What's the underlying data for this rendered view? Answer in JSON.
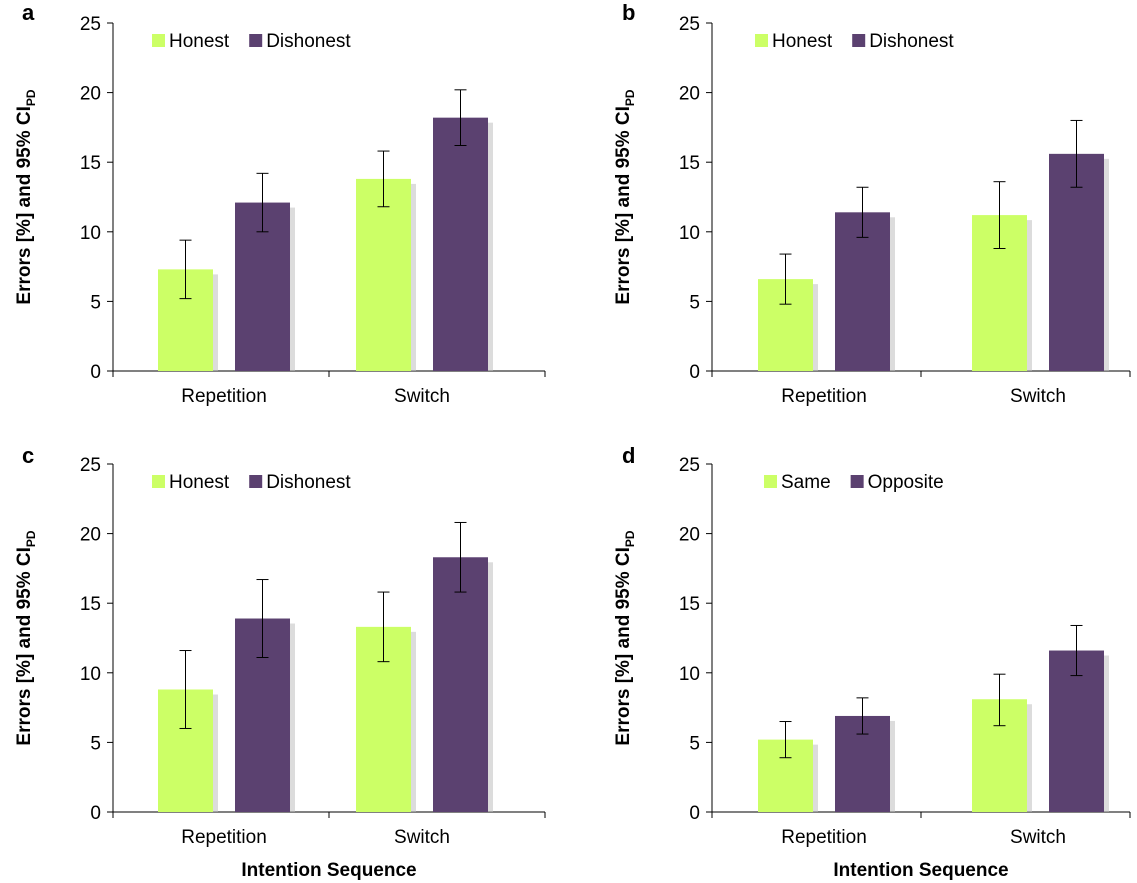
{
  "chart_data": [
    {
      "type": "bar",
      "panel_label": "a",
      "categories": [
        "Repetition",
        "Switch"
      ],
      "series": [
        {
          "name": "Honest",
          "values": [
            7.3,
            13.8
          ],
          "ci_low": [
            5.2,
            11.8
          ],
          "ci_high": [
            9.4,
            15.8
          ]
        },
        {
          "name": "Dishonest",
          "values": [
            12.1,
            18.2
          ],
          "ci_low": [
            10.0,
            16.2
          ],
          "ci_high": [
            14.2,
            20.2
          ]
        }
      ],
      "ylabel": "Errors [%] and 95% CI",
      "ylabel_sub": "PD",
      "xlabel": "",
      "ylim": [
        0,
        25
      ],
      "yticks": [
        0,
        5,
        10,
        15,
        20,
        25
      ],
      "grid": false,
      "legend": "top-left"
    },
    {
      "type": "bar",
      "panel_label": "b",
      "categories": [
        "Repetition",
        "Switch"
      ],
      "series": [
        {
          "name": "Honest",
          "values": [
            6.6,
            11.2
          ],
          "ci_low": [
            4.8,
            8.8
          ],
          "ci_high": [
            8.4,
            13.6
          ]
        },
        {
          "name": "Dishonest",
          "values": [
            11.4,
            15.6
          ],
          "ci_low": [
            9.6,
            13.2
          ],
          "ci_high": [
            13.2,
            18.0
          ]
        }
      ],
      "ylabel": "Errors [%] and 95% CI",
      "ylabel_sub": "PD",
      "xlabel": "",
      "ylim": [
        0,
        25
      ],
      "yticks": [
        0,
        5,
        10,
        15,
        20,
        25
      ],
      "grid": false,
      "legend": "top-left"
    },
    {
      "type": "bar",
      "panel_label": "c",
      "categories": [
        "Repetition",
        "Switch"
      ],
      "series": [
        {
          "name": "Honest",
          "values": [
            8.8,
            13.3
          ],
          "ci_low": [
            6.0,
            10.8
          ],
          "ci_high": [
            11.6,
            15.8
          ]
        },
        {
          "name": "Dishonest",
          "values": [
            13.9,
            18.3
          ],
          "ci_low": [
            11.1,
            15.8
          ],
          "ci_high": [
            16.7,
            20.8
          ]
        }
      ],
      "ylabel": "Errors [%] and 95% CI",
      "ylabel_sub": "PD",
      "xlabel": "Intention Sequence",
      "ylim": [
        0,
        25
      ],
      "yticks": [
        0,
        5,
        10,
        15,
        20,
        25
      ],
      "grid": false,
      "legend": "top-left"
    },
    {
      "type": "bar",
      "panel_label": "d",
      "categories": [
        "Repetition",
        "Switch"
      ],
      "series": [
        {
          "name": "Same",
          "values": [
            5.2,
            8.1
          ],
          "ci_low": [
            3.9,
            6.2
          ],
          "ci_high": [
            6.5,
            9.9
          ]
        },
        {
          "name": "Opposite",
          "values": [
            6.9,
            11.6
          ],
          "ci_low": [
            5.6,
            9.8
          ],
          "ci_high": [
            8.2,
            13.4
          ]
        }
      ],
      "ylabel": "Errors [%] and 95% CI",
      "ylabel_sub": "PD",
      "xlabel": "Intention Sequence",
      "ylim": [
        0,
        25
      ],
      "yticks": [
        0,
        5,
        10,
        15,
        20,
        25
      ],
      "grid": false,
      "legend": "top-left"
    }
  ],
  "colors": {
    "series_1": "#ccff66",
    "series_2": "#5b4170",
    "axis": "#000000",
    "shadow": "#bfbfbf"
  }
}
